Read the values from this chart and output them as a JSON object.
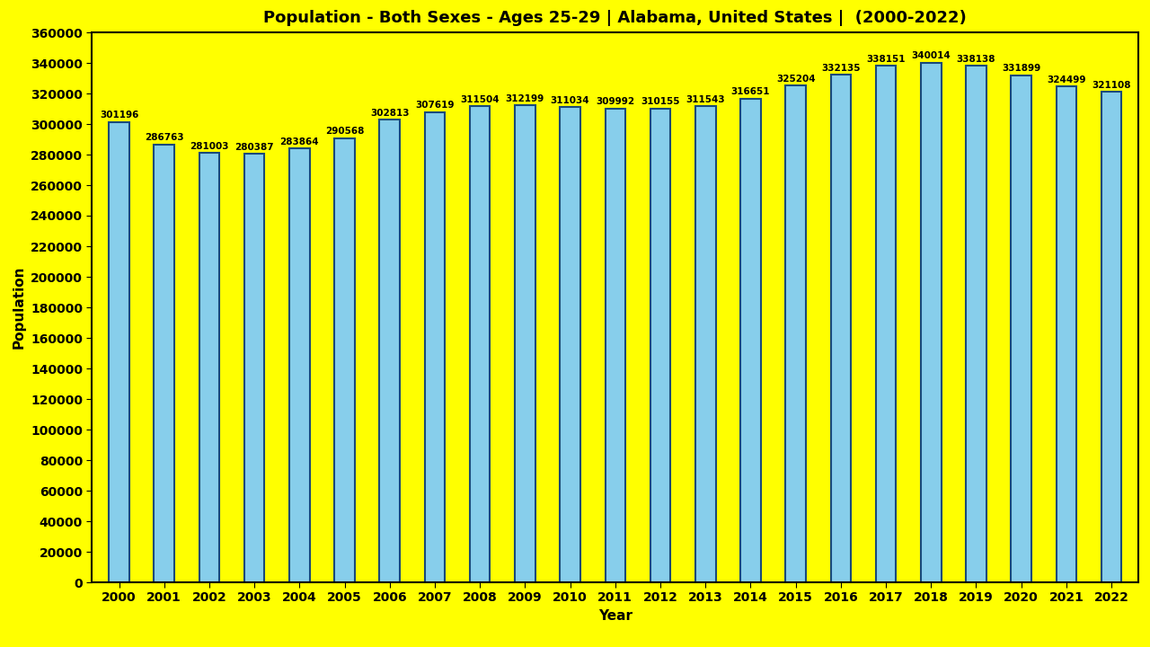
{
  "title": "Population - Both Sexes - Ages 25-29 | Alabama, United States |  (2000-2022)",
  "years": [
    2000,
    2001,
    2002,
    2003,
    2004,
    2005,
    2006,
    2007,
    2008,
    2009,
    2010,
    2011,
    2012,
    2013,
    2014,
    2015,
    2016,
    2017,
    2018,
    2019,
    2020,
    2021,
    2022
  ],
  "values": [
    301196,
    286763,
    281003,
    280387,
    283864,
    290568,
    302813,
    307619,
    311504,
    312199,
    311034,
    309992,
    310155,
    311543,
    316651,
    325204,
    332135,
    338151,
    340014,
    338138,
    331899,
    324499,
    321108
  ],
  "bar_color": "#87CEEB",
  "bar_edge_color": "#1a4a7a",
  "background_color": "#FFFF00",
  "title_color": "#000000",
  "label_color": "#000000",
  "ylabel": "Population",
  "xlabel": "Year",
  "ylim": [
    0,
    360000
  ],
  "yticks": [
    0,
    20000,
    40000,
    60000,
    80000,
    100000,
    120000,
    140000,
    160000,
    180000,
    200000,
    220000,
    240000,
    260000,
    280000,
    300000,
    320000,
    340000,
    360000
  ],
  "title_fontsize": 13,
  "axis_label_fontsize": 11,
  "tick_fontsize": 10,
  "value_label_fontsize": 7.5,
  "bar_width": 0.45
}
